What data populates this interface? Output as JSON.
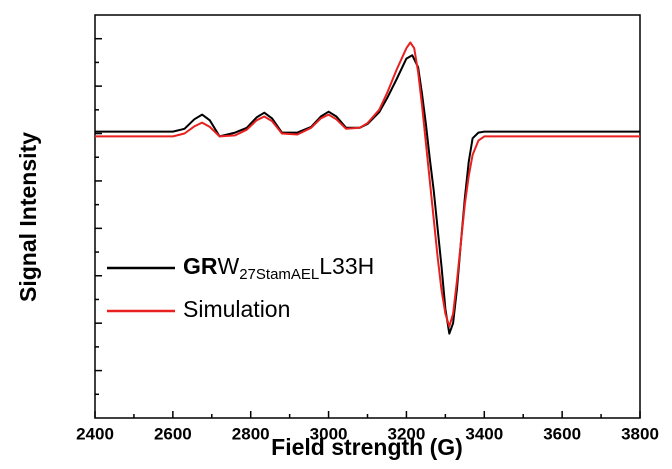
{
  "chart_data": {
    "type": "line",
    "xlabel": "Field strength (G)",
    "ylabel": "Signal Intensity",
    "xlim": [
      2400,
      3800
    ],
    "xticks": [
      2400,
      2600,
      2800,
      3000,
      3200,
      3400,
      3600,
      3800
    ],
    "xminor_ticks": [
      2500,
      2700,
      2900,
      3100,
      3300,
      3500,
      3700
    ],
    "ylim": [
      -6,
      2.5
    ],
    "yticks": [
      -5.5,
      -5,
      -4.5,
      -4,
      -3.5,
      -3,
      -2.5,
      -2,
      -1.5,
      -1,
      -0.5,
      0,
      0.5,
      1,
      1.5,
      2
    ],
    "series": [
      {
        "name_parts": [
          {
            "text": "GR",
            "style": "bold"
          },
          {
            "text": "W"
          },
          {
            "text": "27StamAEL",
            "style": "sub"
          },
          {
            "text": "L33H"
          }
        ],
        "color": "#000000",
        "x": [
          2400,
          2500,
          2600,
          2630,
          2655,
          2675,
          2695,
          2720,
          2760,
          2790,
          2815,
          2835,
          2855,
          2880,
          2920,
          2955,
          2980,
          3000,
          3020,
          3045,
          3080,
          3100,
          3130,
          3150,
          3175,
          3200,
          3215,
          3230,
          3240,
          3250,
          3260,
          3270,
          3280,
          3290,
          3300,
          3310,
          3320,
          3330,
          3340,
          3350,
          3360,
          3370,
          3385,
          3400,
          3500,
          3600,
          3700,
          3800
        ],
        "values": [
          0.04,
          0.04,
          0.04,
          0.1,
          0.3,
          0.4,
          0.28,
          -0.06,
          0.02,
          0.12,
          0.34,
          0.44,
          0.32,
          0.02,
          0.02,
          0.14,
          0.36,
          0.46,
          0.36,
          0.12,
          0.12,
          0.2,
          0.45,
          0.74,
          1.15,
          1.58,
          1.65,
          1.4,
          0.84,
          0.2,
          -0.53,
          -1.2,
          -2.0,
          -2.8,
          -3.7,
          -4.22,
          -4.0,
          -3.27,
          -2.3,
          -1.37,
          -0.6,
          -0.1,
          0.02,
          0.04,
          0.04,
          0.04,
          0.04,
          0.04
        ]
      },
      {
        "name": "Simulation",
        "color": "#e8201f",
        "x": [
          2400,
          2500,
          2600,
          2630,
          2655,
          2675,
          2695,
          2720,
          2760,
          2790,
          2815,
          2835,
          2855,
          2880,
          2920,
          2955,
          2980,
          3000,
          3020,
          3045,
          3080,
          3100,
          3130,
          3150,
          3175,
          3200,
          3210,
          3220,
          3230,
          3240,
          3250,
          3260,
          3270,
          3280,
          3290,
          3300,
          3310,
          3320,
          3330,
          3340,
          3350,
          3360,
          3370,
          3385,
          3400,
          3500,
          3600,
          3700,
          3800
        ],
        "values": [
          -0.06,
          -0.06,
          -0.06,
          0.0,
          0.15,
          0.23,
          0.14,
          -0.06,
          -0.04,
          0.08,
          0.28,
          0.36,
          0.26,
          0.0,
          -0.02,
          0.12,
          0.32,
          0.4,
          0.3,
          0.1,
          0.12,
          0.22,
          0.5,
          0.85,
          1.35,
          1.8,
          1.92,
          1.8,
          1.3,
          0.6,
          -0.2,
          -1.0,
          -1.8,
          -2.6,
          -3.3,
          -3.8,
          -4.07,
          -3.8,
          -3.1,
          -2.3,
          -1.5,
          -0.9,
          -0.45,
          -0.15,
          -0.06,
          -0.06,
          -0.06,
          -0.06,
          -0.06
        ]
      }
    ]
  }
}
